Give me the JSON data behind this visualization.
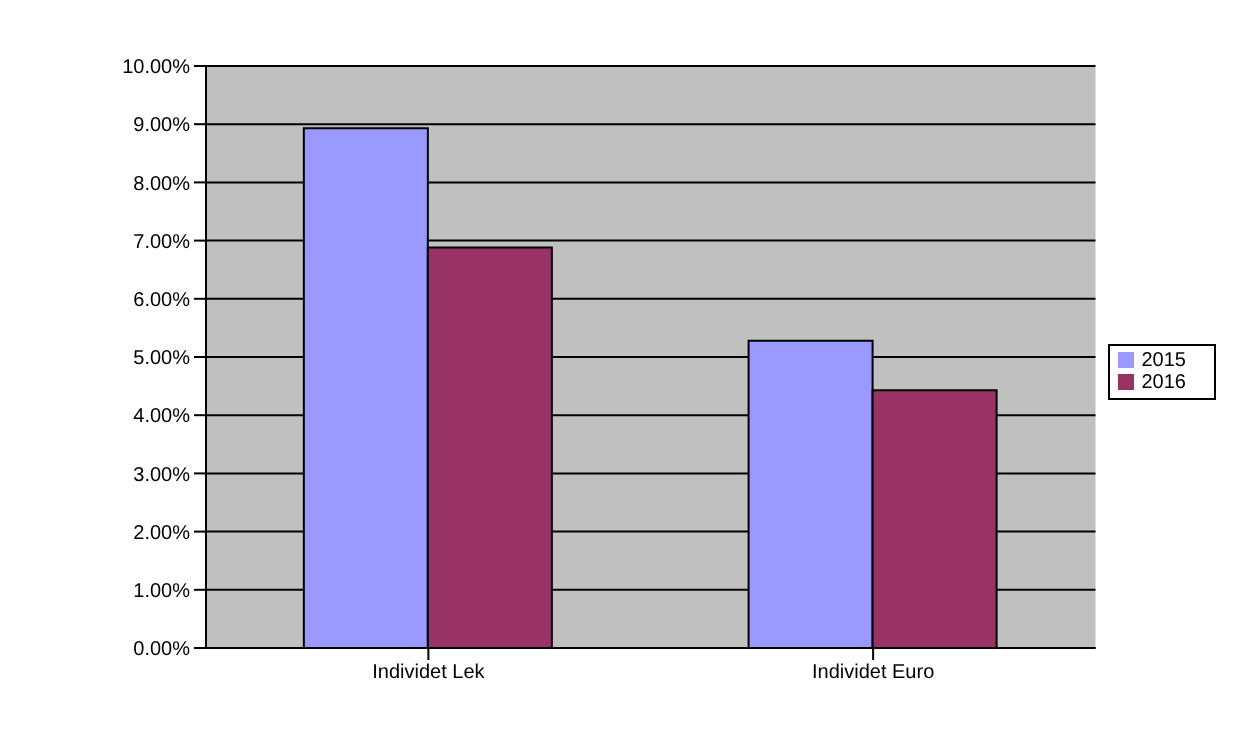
{
  "chart_data": {
    "type": "bar",
    "categories": [
      "Individet Lek",
      "Individet Euro"
    ],
    "series": [
      {
        "name": "2015",
        "color": "#9999ff",
        "values": [
          8.93,
          5.28
        ]
      },
      {
        "name": "2016",
        "color": "#993366",
        "values": [
          6.88,
          4.43
        ]
      }
    ],
    "ylim": [
      0,
      10
    ],
    "yticks": [
      {
        "value": 0,
        "label": "0.00%"
      },
      {
        "value": 1,
        "label": "1.00%"
      },
      {
        "value": 2,
        "label": "2.00%"
      },
      {
        "value": 3,
        "label": "3.00%"
      },
      {
        "value": 4,
        "label": "4.00%"
      },
      {
        "value": 5,
        "label": "5.00%"
      },
      {
        "value": 6,
        "label": "6.00%"
      },
      {
        "value": 7,
        "label": "7.00%"
      },
      {
        "value": 8,
        "label": "8.00%"
      },
      {
        "value": 9,
        "label": "9.00%"
      },
      {
        "value": 10,
        "label": "10.00%"
      }
    ],
    "grid": "y",
    "legend": "right"
  }
}
